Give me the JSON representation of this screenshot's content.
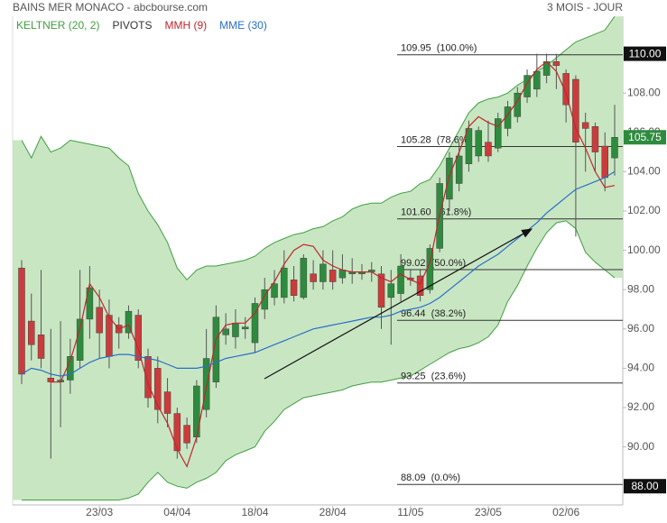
{
  "chart_data": {
    "type": "candlestick",
    "title": "BAINS MER MONACO - abcbourse.com",
    "period": "3 MOIS - JOUR",
    "categories": [
      null,
      null,
      null,
      null,
      null,
      null,
      null,
      null,
      "23/03",
      null,
      null,
      null,
      null,
      null,
      null,
      null,
      "04/04",
      null,
      null,
      null,
      null,
      null,
      null,
      null,
      "18/04",
      null,
      null,
      null,
      null,
      null,
      null,
      null,
      "28/04",
      null,
      null,
      null,
      null,
      null,
      null,
      null,
      "11/05",
      null,
      null,
      null,
      null,
      null,
      null,
      null,
      "23/05",
      null,
      null,
      null,
      null,
      null,
      null,
      null,
      "02/06",
      null,
      null,
      null,
      null,
      null
    ],
    "open": [
      99.1,
      96.4,
      95.7,
      93.5,
      93.3,
      93.4,
      94.4,
      96.5,
      97.1,
      96.7,
      96.2,
      95.8,
      96.7,
      94.6,
      94.0,
      92.8,
      91.7,
      91.1,
      90.5,
      91.9,
      93.3,
      95.7,
      95.6,
      96.0,
      95.3,
      97.0,
      97.6,
      97.6,
      98.5,
      97.6,
      98.8,
      98.4,
      99.0,
      98.6,
      98.8,
      98.8,
      98.9,
      98.8,
      97.6,
      97.8,
      98.6,
      98.7,
      98.0,
      100.1,
      102.6,
      103.4,
      104.4,
      104.8,
      105.5,
      105.2,
      106.2,
      106.8,
      107.8,
      108.2,
      108.9,
      109.6,
      109.0,
      108.7,
      106.5,
      106.3,
      105.3,
      104.7
    ],
    "high": [
      99.5,
      97.8,
      99.0,
      96.0,
      96.4,
      95.5,
      99.0,
      99.2,
      98.0,
      97.5,
      96.6,
      97.2,
      97.0,
      95.0,
      94.6,
      93.5,
      92.0,
      91.5,
      93.4,
      96.0,
      97.2,
      96.8,
      97.0,
      96.6,
      97.6,
      98.6,
      99.0,
      100.0,
      99.2,
      99.8,
      99.5,
      100.0,
      100.0,
      99.8,
      99.6,
      99.3,
      99.4,
      99.2,
      99.0,
      99.8,
      99.0,
      99.0,
      100.3,
      103.7,
      105.0,
      105.5,
      106.6,
      106.3,
      106.6,
      107.0,
      107.6,
      108.3,
      109.2,
      110.0,
      110.0,
      110.0,
      109.2,
      108.9,
      107.0,
      106.5,
      106.0,
      107.4
    ],
    "low": [
      93.2,
      94.4,
      94.0,
      89.4,
      91.0,
      92.7,
      94.0,
      95.5,
      94.5,
      94.0,
      95.0,
      95.5,
      94.0,
      92.0,
      91.2,
      91.0,
      89.4,
      89.9,
      90.2,
      91.5,
      93.0,
      95.2,
      95.0,
      95.5,
      94.8,
      96.5,
      97.2,
      97.3,
      97.4,
      97.5,
      98.0,
      98.0,
      98.0,
      98.3,
      98.3,
      98.5,
      98.4,
      96.0,
      95.2,
      97.4,
      98.2,
      97.4,
      97.8,
      99.9,
      102.0,
      103.0,
      104.0,
      104.5,
      104.5,
      105.0,
      105.8,
      106.5,
      107.5,
      107.8,
      108.5,
      108.2,
      106.5,
      100.7,
      104.0,
      104.0,
      103.0,
      103.8
    ],
    "close": [
      93.7,
      95.2,
      94.5,
      93.3,
      93.4,
      94.6,
      96.5,
      98.1,
      95.8,
      94.6,
      95.8,
      96.9,
      94.4,
      92.5,
      91.9,
      91.7,
      89.8,
      90.2,
      93.1,
      94.5,
      96.6,
      96.0,
      96.3,
      96.1,
      97.3,
      98.0,
      98.3,
      99.1,
      97.7,
      99.6,
      98.4,
      99.3,
      98.4,
      99.0,
      98.9,
      98.9,
      99.0,
      97.1,
      98.3,
      99.2,
      98.5,
      97.7,
      100.1,
      103.4,
      104.7,
      104.8,
      106.2,
      106.1,
      104.8,
      106.7,
      107.3,
      108.0,
      108.9,
      109.1,
      109.6,
      109.4,
      107.4,
      105.5,
      106.2,
      105.0,
      103.7,
      105.75
    ],
    "up_color": "#2e8b3e",
    "down_color": "#cc3b3b",
    "band": {
      "name": "KELTNER (20, 2)",
      "color": "#3f9f3f",
      "fill": "#c9e6c3",
      "upper": [
        105.6,
        104.7,
        105.8,
        105.0,
        105.2,
        105.6,
        105.5,
        105.4,
        105.3,
        105.2,
        104.7,
        104.3,
        102.9,
        102.0,
        101.3,
        100.4,
        99.1,
        98.5,
        99.0,
        99.2,
        99.2,
        99.3,
        99.4,
        99.5,
        99.7,
        100.1,
        100.4,
        100.6,
        100.8,
        100.9,
        101.1,
        101.2,
        101.5,
        101.7,
        102.1,
        102.3,
        102.4,
        102.4,
        102.7,
        102.9,
        103.0,
        103.4,
        103.6,
        104.3,
        105.2,
        106.1,
        107.0,
        107.5,
        107.7,
        107.8,
        108.0,
        108.4,
        108.7,
        109.1,
        109.4,
        109.8,
        110.2,
        110.6,
        110.8,
        111.0,
        111.2,
        111.9
      ],
      "lower": [
        87.3,
        87.3,
        87.3,
        87.3,
        87.3,
        87.3,
        87.3,
        87.3,
        87.3,
        87.3,
        87.3,
        87.4,
        87.6,
        88.2,
        88.7,
        88.2,
        88.0,
        87.9,
        88.2,
        88.4,
        88.7,
        89.3,
        89.6,
        89.8,
        90.0,
        90.8,
        91.3,
        91.9,
        92.2,
        92.5,
        92.6,
        92.7,
        92.8,
        92.9,
        93.1,
        93.2,
        93.3,
        93.3,
        93.4,
        93.5,
        93.6,
        93.9,
        94.2,
        94.5,
        94.8,
        95.0,
        95.1,
        95.3,
        95.6,
        96.2,
        97.4,
        98.2,
        99.2,
        100.1,
        100.9,
        101.4,
        101.5,
        101.1,
        99.9,
        99.4,
        99.0,
        98.6
      ]
    },
    "series": [
      {
        "name": "MMH (9)",
        "color": "#c0262c",
        "values": [
          null,
          null,
          null,
          93.3,
          93.3,
          94.4,
          96.0,
          98.3,
          97.6,
          96.6,
          96.0,
          96.2,
          95.0,
          93.2,
          92.1,
          91.2,
          89.9,
          89.0,
          90.5,
          93.0,
          95.5,
          96.2,
          96.3,
          96.3,
          96.8,
          97.7,
          98.4,
          99.3,
          100.0,
          100.3,
          100.2,
          99.5,
          99.2,
          99.0,
          98.9,
          98.9,
          98.9,
          98.6,
          98.4,
          98.8,
          98.5,
          98.3,
          99.4,
          101.8,
          103.8,
          105.0,
          106.3,
          106.8,
          106.5,
          106.3,
          106.9,
          107.6,
          108.5,
          109.2,
          109.6,
          109.1,
          108.0,
          106.2,
          105.2,
          104.0,
          103.2,
          103.3
        ]
      },
      {
        "name": "MME (30)",
        "color": "#2a6fc9",
        "values": [
          93.7,
          94.0,
          93.9,
          93.7,
          93.6,
          93.7,
          94.0,
          94.3,
          94.5,
          94.6,
          94.7,
          94.7,
          94.6,
          94.5,
          94.4,
          94.2,
          94.0,
          94.0,
          94.0,
          94.1,
          94.3,
          94.5,
          94.6,
          94.7,
          94.8,
          95.0,
          95.2,
          95.4,
          95.6,
          95.8,
          96.0,
          96.1,
          96.2,
          96.3,
          96.4,
          96.5,
          96.6,
          96.6,
          96.7,
          96.9,
          97.0,
          97.1,
          97.3,
          97.6,
          98.0,
          98.4,
          98.8,
          99.2,
          99.5,
          99.8,
          100.2,
          100.6,
          101.0,
          101.4,
          101.9,
          102.3,
          102.7,
          103.1,
          103.3,
          103.5,
          103.7,
          104.0
        ]
      }
    ],
    "pivots": {
      "name": "PIVOTS",
      "color": "#333333",
      "levels": [
        {
          "value": 109.95,
          "label": "109.95  (100.0%)"
        },
        {
          "value": 105.28,
          "label": "105.28  (78.6%)"
        },
        {
          "value": 101.6,
          "label": "101.60  (61.8%)"
        },
        {
          "value": 99.02,
          "label": "99.02  (50.0%)"
        },
        {
          "value": 96.44,
          "label": "96.44  (38.2%)"
        },
        {
          "value": 93.25,
          "label": "93.25  (23.6%)"
        },
        {
          "value": 88.09,
          "label": "88.09  (0.0%)"
        }
      ]
    },
    "ylim": [
      87,
      112
    ],
    "yticks": [
      {
        "value": 90,
        "label": "90.00"
      },
      {
        "value": 92,
        "label": "92.00"
      },
      {
        "value": 94,
        "label": "94.00"
      },
      {
        "value": 96,
        "label": "96.00"
      },
      {
        "value": 98,
        "label": "98.00"
      },
      {
        "value": 100,
        "label": "100.00"
      },
      {
        "value": 102,
        "label": "102.00"
      },
      {
        "value": 104,
        "label": "104.00"
      },
      {
        "value": 106,
        "label": "106.00"
      },
      {
        "value": 108,
        "label": "108.00"
      }
    ],
    "price_markers": [
      {
        "value": 110,
        "label": "110.00",
        "color": "#111111"
      },
      {
        "value": 88,
        "label": "88.00",
        "color": "#111111"
      },
      {
        "value": 105.75,
        "label": "105.75",
        "color": "#2e8b3e"
      }
    ]
  }
}
